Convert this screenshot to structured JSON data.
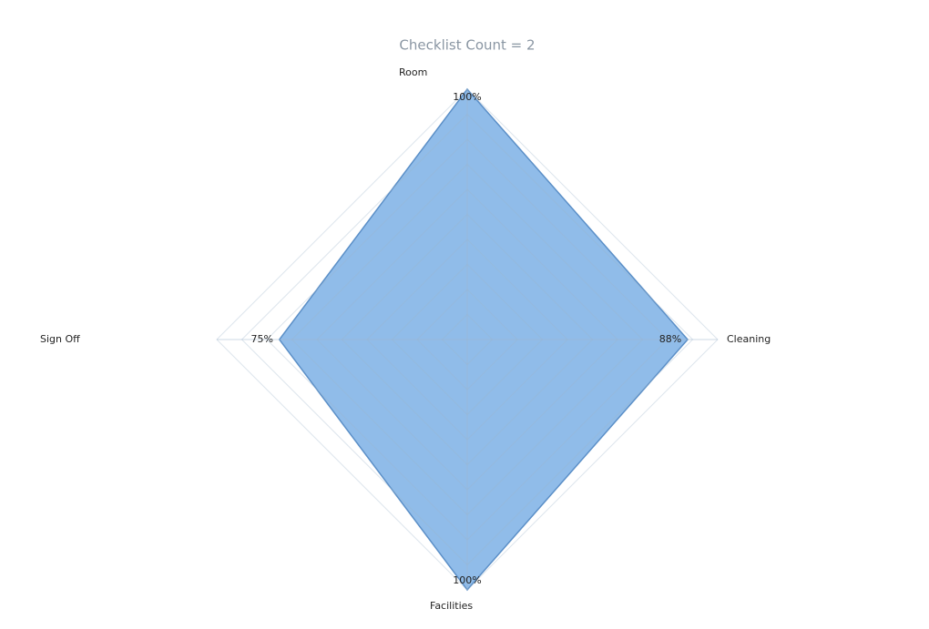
{
  "chart_data": {
    "type": "radar",
    "title": "Checklist Count = 2",
    "categories": [
      "Room",
      "Cleaning",
      "Facilities",
      "Sign Off"
    ],
    "values": [
      100,
      88,
      100,
      75
    ],
    "value_labels": [
      "100%",
      "88%",
      "100%",
      "75%"
    ],
    "color": "#8ab8e8",
    "ylim": [
      0,
      100
    ],
    "yticks": [
      0,
      10,
      20,
      30,
      40,
      50,
      60,
      70,
      80,
      90,
      100
    ],
    "grid": true
  }
}
